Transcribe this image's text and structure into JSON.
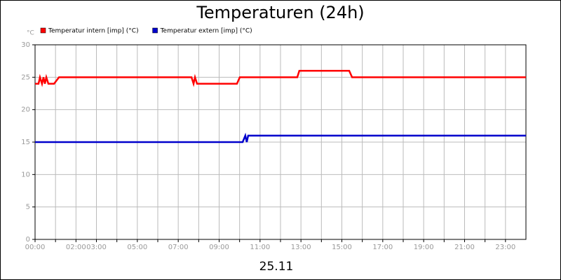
{
  "chart_data": {
    "type": "line",
    "title": "Temperaturen (24h)",
    "y_unit": "°C",
    "xlabel": "25.11",
    "xlim": [
      0,
      24
    ],
    "xticks": [
      {
        "value": 0,
        "label": "00:00"
      },
      {
        "value": 1,
        "label": null
      },
      {
        "value": 2,
        "label": "02:00"
      },
      {
        "value": 3,
        "label": "03:00"
      },
      {
        "value": 4,
        "label": null
      },
      {
        "value": 5,
        "label": "05:00"
      },
      {
        "value": 6,
        "label": null
      },
      {
        "value": 7,
        "label": "07:00"
      },
      {
        "value": 8,
        "label": null
      },
      {
        "value": 9,
        "label": "09:00"
      },
      {
        "value": 10,
        "label": null
      },
      {
        "value": 11,
        "label": "11:00"
      },
      {
        "value": 12,
        "label": null
      },
      {
        "value": 13,
        "label": "13:00"
      },
      {
        "value": 14,
        "label": null
      },
      {
        "value": 15,
        "label": "15:00"
      },
      {
        "value": 16,
        "label": null
      },
      {
        "value": 17,
        "label": "17:00"
      },
      {
        "value": 18,
        "label": null
      },
      {
        "value": 19,
        "label": "19:00"
      },
      {
        "value": 20,
        "label": null
      },
      {
        "value": 21,
        "label": "21:00"
      },
      {
        "value": 22,
        "label": null
      },
      {
        "value": 23,
        "label": "23:00"
      }
    ],
    "ylim": [
      0,
      30
    ],
    "yticks": [
      0,
      5,
      10,
      15,
      20,
      25,
      30
    ],
    "grid": true,
    "series": [
      {
        "name": "Temperatur intern [imp] (°C)",
        "color": "#ff0000",
        "x": [
          0,
          0.17,
          0.24,
          0.34,
          0.41,
          0.48,
          0.55,
          0.65,
          0.93,
          1.17,
          7.65,
          7.75,
          7.82,
          7.92,
          9.87,
          10.01,
          12.82,
          12.92,
          15.36,
          15.5,
          24
        ],
        "values": [
          24,
          24,
          25,
          24,
          25,
          24,
          25,
          24,
          24,
          25,
          25,
          24,
          25,
          24,
          24,
          25,
          25,
          26,
          26,
          25,
          25
        ]
      },
      {
        "name": "Temperatur extern [imp] (°C)",
        "color": "#0000cc",
        "x": [
          0,
          10.15,
          10.28,
          10.35,
          10.42,
          24
        ],
        "values": [
          15,
          15,
          16,
          15,
          16,
          16
        ]
      }
    ]
  }
}
